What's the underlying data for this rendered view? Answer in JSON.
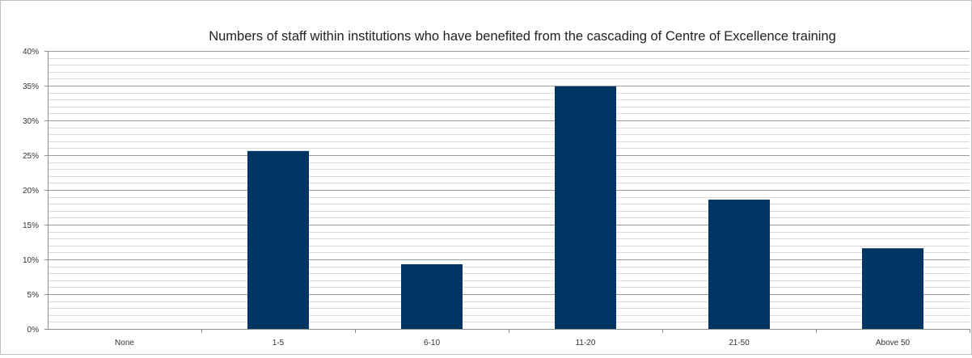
{
  "chart_data": {
    "type": "bar",
    "title": "Numbers of staff within institutions who have benefited from the cascading of Centre of Excellence training",
    "xlabel": "",
    "ylabel": "",
    "categories": [
      "None",
      "1-5",
      "6-10",
      "11-20",
      "21-50",
      "Above 50"
    ],
    "values": [
      0,
      25.6,
      9.3,
      34.9,
      18.6,
      11.6
    ],
    "value_unit": "%",
    "ylim": [
      0,
      40
    ],
    "y_tick_labels": [
      "0%",
      "5%",
      "10%",
      "15%",
      "20%",
      "25%",
      "30%",
      "35%",
      "40%"
    ],
    "grid": "horizontal major and minor",
    "legend": "none",
    "bar_color": "#003462",
    "gridline_color": "#bfbfbf"
  }
}
